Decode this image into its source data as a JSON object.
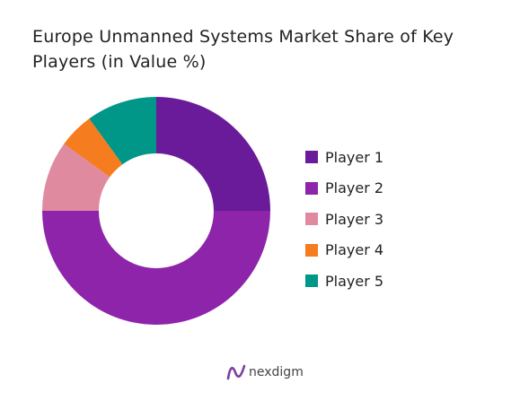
{
  "chart_data": {
    "type": "pie",
    "title": "Europe Unmanned Systems Market Share of Key Players (in Value %)",
    "categories": [
      "Player 1",
      "Player 2",
      "Player 3",
      "Player 4",
      "Player 5"
    ],
    "values": [
      25,
      50,
      10,
      5,
      10
    ],
    "colors": [
      "#6a1b9a",
      "#8e24aa",
      "#e08a9f",
      "#f57c1f",
      "#009688"
    ],
    "legend": "right",
    "donut": true
  },
  "brand": {
    "name": "nexdigm",
    "icon": "nexdigm-logo-icon",
    "color": "#7b3fa0"
  }
}
